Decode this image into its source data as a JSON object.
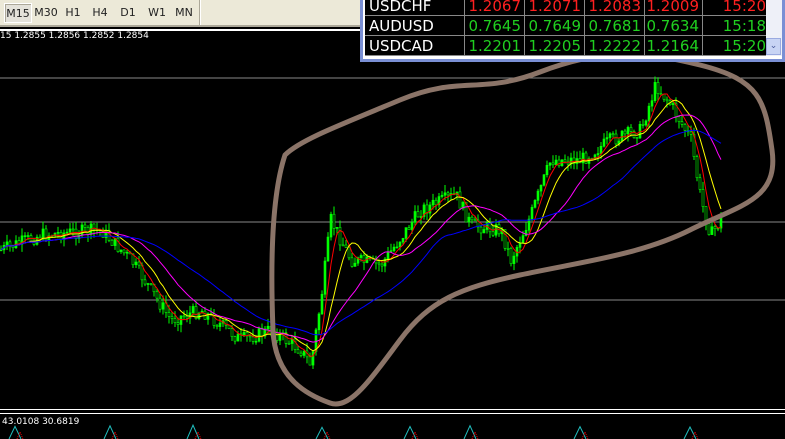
{
  "toolbar": {
    "timeframes": [
      "M15",
      "M30",
      "H1",
      "H4",
      "D1",
      "W1",
      "MN"
    ],
    "active": "M15"
  },
  "chart": {
    "info": "15  1.2855 1.2856 1.2852 1.2854",
    "bull_color": "#00ff00",
    "annotation_color": "#8b7468",
    "ma_colors": [
      "#ff0000",
      "#ffff00",
      "#ff00ff",
      "#0000ff"
    ]
  },
  "indicator": {
    "info": "43.0108 30.6819",
    "colors": [
      "#20c0c0",
      "#ff0000"
    ]
  },
  "market_watch": {
    "rows": [
      {
        "symbol": "USDCHF",
        "bid": "1.2067",
        "ask": "1.2071",
        "high": "1.2083",
        "low": "1.2009",
        "time": "15:20",
        "color": "#ff2020"
      },
      {
        "symbol": "AUDUSD",
        "bid": "0.7645",
        "ask": "0.7649",
        "high": "0.7681",
        "low": "0.7634",
        "time": "15:18",
        "color": "#20d020"
      },
      {
        "symbol": "USDCAD",
        "bid": "1.2201",
        "ask": "1.2205",
        "high": "1.2222",
        "low": "1.2164",
        "time": "15:20",
        "color": "#20d020"
      }
    ],
    "scroll_icon": "chevron-down-icon"
  }
}
